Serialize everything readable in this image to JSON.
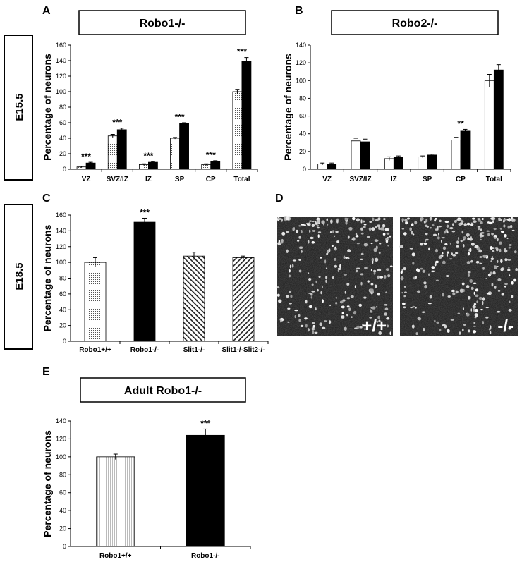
{
  "stages": {
    "e155": "E15.5",
    "e185": "E18.5"
  },
  "panels": {
    "A": {
      "letter": "A",
      "title": "Robo1-/-"
    },
    "B": {
      "letter": "B",
      "title": "Robo2-/-"
    },
    "C": {
      "letter": "C"
    },
    "D": {
      "letter": "D",
      "left_label": "+/+",
      "right_label": "-/-"
    },
    "E": {
      "letter": "E",
      "title": "Adult Robo1-/-"
    }
  },
  "chart_data": [
    {
      "id": "A",
      "type": "bar",
      "ylabel": "Percentage of neurons",
      "ylim": [
        0,
        160
      ],
      "yticks": [
        0,
        20,
        40,
        60,
        80,
        100,
        120,
        140,
        160
      ],
      "categories": [
        "VZ",
        "SVZ/IZ",
        "IZ",
        "SP",
        "CP",
        "Total"
      ],
      "series": [
        {
          "fill": "dots",
          "values": [
            3,
            43,
            6,
            40,
            6,
            100
          ],
          "errors": [
            1,
            2,
            1,
            1,
            1,
            3
          ]
        },
        {
          "fill": "black",
          "values": [
            8,
            51,
            9,
            59,
            10,
            139
          ],
          "errors": [
            1,
            2,
            1,
            1,
            1,
            5
          ]
        }
      ],
      "annotations": [
        "***",
        "***",
        "***",
        "***",
        "***",
        "***"
      ]
    },
    {
      "id": "B",
      "type": "bar",
      "ylabel": "Percentage of neurons",
      "ylim": [
        0,
        140
      ],
      "yticks": [
        0,
        20,
        40,
        60,
        80,
        100,
        120,
        140
      ],
      "categories": [
        "VZ",
        "SVZ/IZ",
        "IZ",
        "SP",
        "CP",
        "Total"
      ],
      "series": [
        {
          "fill": "white",
          "values": [
            6,
            32,
            12,
            14,
            33,
            100
          ],
          "errors": [
            1,
            3,
            2,
            1,
            3,
            7
          ]
        },
        {
          "fill": "black",
          "values": [
            6,
            31,
            14,
            16,
            43,
            112
          ],
          "errors": [
            1,
            3,
            1,
            1,
            2,
            6
          ]
        }
      ],
      "annotations": [
        "",
        "",
        "",
        "",
        "**",
        ""
      ]
    },
    {
      "id": "C",
      "type": "bar",
      "ylabel": "Percentage of neurons",
      "ylim": [
        0,
        160
      ],
      "yticks": [
        0,
        20,
        40,
        60,
        80,
        100,
        120,
        140,
        160
      ],
      "categories": [
        "Robo1+/+",
        "Robo1-/-",
        "Slit1-/-",
        "Slit1-/-Slit2-/-"
      ],
      "series": [
        {
          "fills": [
            "dots",
            "black",
            "hatch-right",
            "hatch-left"
          ],
          "values": [
            100,
            151,
            108,
            106
          ],
          "errors": [
            6,
            5,
            5,
            2
          ]
        }
      ],
      "annotations": [
        "",
        "***",
        "",
        ""
      ]
    },
    {
      "id": "E",
      "type": "bar",
      "ylabel": "Percentage of neurons",
      "ylim": [
        0,
        140
      ],
      "yticks": [
        0,
        20,
        40,
        60,
        80,
        100,
        120,
        140
      ],
      "categories": [
        "Robo1+/+",
        "Robo1-/-"
      ],
      "series": [
        {
          "fills": [
            "vlines",
            "black"
          ],
          "values": [
            100,
            124
          ],
          "errors": [
            3,
            7
          ]
        }
      ],
      "annotations": [
        "",
        "***"
      ]
    }
  ]
}
